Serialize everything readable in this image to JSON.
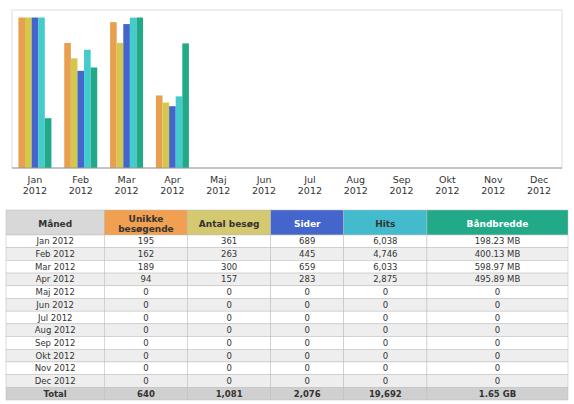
{
  "chart_data": [
    {
      "type": "bar",
      "categories": [
        "Jan\n2012",
        "Feb\n2012",
        "Mar\n2012",
        "Apr\n2012",
        "Maj\n2012",
        "Jun\n2012",
        "Jul\n2012",
        "Aug\n2012",
        "Sep\n2012",
        "Okt\n2012",
        "Nov\n2012",
        "Dec\n2012"
      ],
      "series": [
        {
          "color": "#E8A050",
          "values": [
            1,
            0.830769,
            0.969231,
            0.482051,
            0,
            0,
            0,
            0,
            0,
            0,
            0,
            0
          ]
        },
        {
          "color": "#D4C84A",
          "values": [
            1,
            0.728532,
            0.831025,
            0.434903,
            0,
            0,
            0,
            0,
            0,
            0,
            0,
            0
          ]
        },
        {
          "color": "#4466CC",
          "values": [
            1,
            0.645864,
            0.956459,
            0.41074,
            0,
            0,
            0,
            0,
            0,
            0,
            0,
            0
          ]
        },
        {
          "color": "#44CCCC",
          "values": [
            1,
            0.786022,
            0.999172,
            0.476151,
            0,
            0,
            0,
            0,
            0,
            0,
            0,
            0
          ]
        },
        {
          "color": "#22AA88",
          "values": [
            0.330951,
            0.66803,
            1,
            0.827905,
            0,
            0,
            0,
            0,
            0,
            0,
            0,
            0
          ]
        }
      ],
      "ylim": [
        0,
        1.05
      ],
      "tick_labels": "x"
    },
    {
      "type": "table",
      "columns": [
        "Måned",
        "Unikke\nbesøgende",
        "Antal besøg",
        "Sider",
        "Hits",
        "Båndbredde"
      ],
      "colors": [
        "#D8D8D8",
        "#F0A050",
        "#D4C870",
        "#4466CC",
        "#44BBCC",
        "#22AA88"
      ],
      "rows": [
        [
          "Jan 2012",
          "195",
          "361",
          "689",
          "6,038",
          "198.23 MB"
        ],
        [
          "Feb 2012",
          "162",
          "263",
          "445",
          "4,746",
          "400.13 MB"
        ],
        [
          "Mar 2012",
          "189",
          "300",
          "659",
          "6,033",
          "598.97 MB"
        ],
        [
          "Apr 2012",
          "94",
          "157",
          "283",
          "2,875",
          "495.89 MB"
        ],
        [
          "Maj 2012",
          "0",
          "0",
          "0",
          "0",
          "0"
        ],
        [
          "Jun 2012",
          "0",
          "0",
          "0",
          "0",
          "0"
        ],
        [
          "Jul 2012",
          "0",
          "0",
          "0",
          "0",
          "0"
        ],
        [
          "Aug 2012",
          "0",
          "0",
          "0",
          "0",
          "0"
        ],
        [
          "Sep 2012",
          "0",
          "0",
          "0",
          "0",
          "0"
        ],
        [
          "Okt 2012",
          "0",
          "0",
          "0",
          "0",
          "0"
        ],
        [
          "Nov 2012",
          "0",
          "0",
          "0",
          "0",
          "0"
        ],
        [
          "Dec 2012",
          "0",
          "0",
          "0",
          "0",
          "0"
        ],
        [
          "Total",
          "640",
          "1,081",
          "2,076",
          "19,692",
          "1.65 GB"
        ]
      ]
    }
  ]
}
